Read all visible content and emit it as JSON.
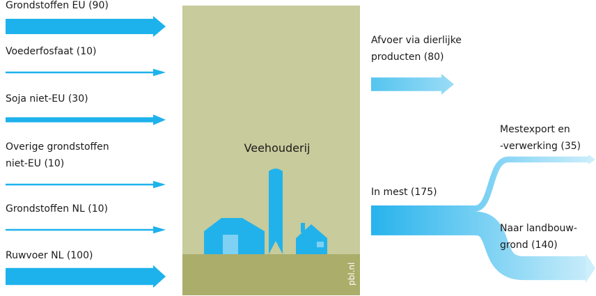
{
  "inputs": [
    {
      "label": [
        "Grondstoffen EU (90)"
      ],
      "value": 90
    },
    {
      "label": [
        "Voederfosfaat (10)"
      ],
      "value": 10
    },
    {
      "label": [
        "Soja niet-EU (30)"
      ],
      "value": 30
    },
    {
      "label": [
        "Overige grondstoffen",
        "niet-EU (10)"
      ],
      "value": 10
    },
    {
      "label": [
        "Grondstoffen NL (10)"
      ],
      "value": 10
    },
    {
      "label": [
        "Ruwvoer NL (100)"
      ],
      "value": 100
    }
  ],
  "center": {
    "title": "Veehouderij",
    "credit": "pbl.nl"
  },
  "outputs": {
    "products": {
      "label": [
        "Afvoer via dierlijke",
        "producten (80)"
      ],
      "value": 80
    },
    "manure": {
      "label": [
        "In mest (175)"
      ],
      "value": 175
    },
    "export": {
      "label": [
        "Mestexport en",
        "-verwerking (35)"
      ],
      "value": 35
    },
    "land": {
      "label": [
        "Naar landbouw-",
        "grond (140)"
      ],
      "value": 140
    }
  }
}
